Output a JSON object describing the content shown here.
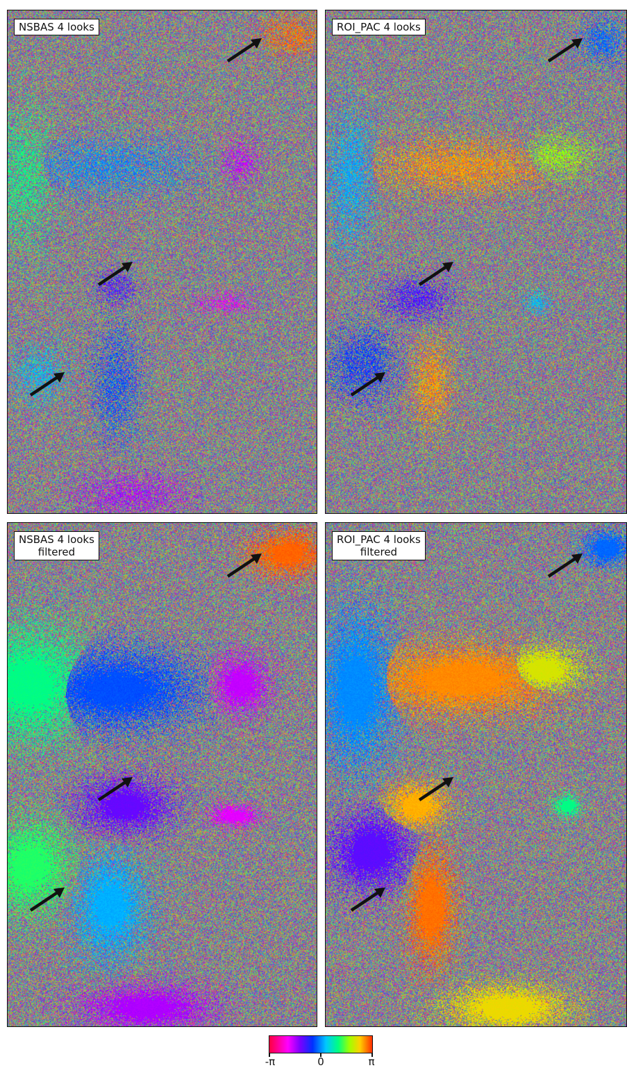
{
  "panels": [
    {
      "id": "nsbas-4-looks",
      "label_lines": [
        "NSBAS 4 looks"
      ],
      "filtered": false
    },
    {
      "id": "roipac-4-looks",
      "label_lines": [
        "ROI_PAC 4 looks"
      ],
      "filtered": false
    },
    {
      "id": "nsbas-4-looks-filtered",
      "label_lines": [
        "NSBAS 4 looks",
        "filtered"
      ],
      "filtered": true
    },
    {
      "id": "roipac-4-looks-filtered",
      "label_lines": [
        "ROI_PAC 4 looks",
        "filtered"
      ],
      "filtered": true
    }
  ],
  "colorbar": {
    "ticks": [
      "-π",
      "0",
      "π"
    ],
    "colors": [
      "#ff0040",
      "#ff00ff",
      "#7a00ff",
      "#0030ff",
      "#00c8ff",
      "#00ff80",
      "#a0ff00",
      "#ffd000",
      "#ff3000"
    ]
  },
  "arrow_color": "#111111"
}
